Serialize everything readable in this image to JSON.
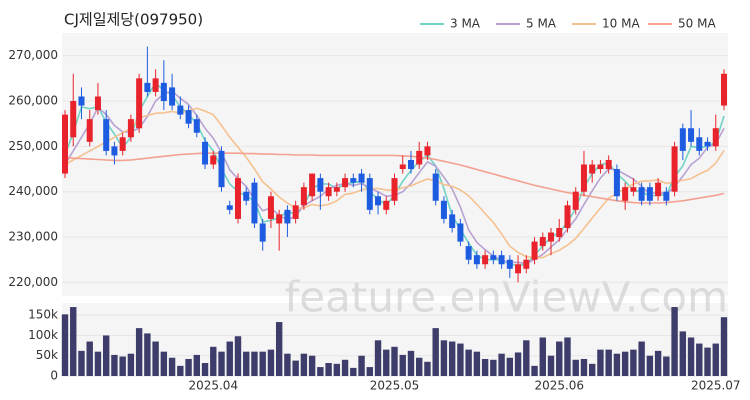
{
  "watermark": "feature.enViewV.com",
  "chart_data": [
    {
      "type": "candlestick",
      "title": "CJ제일제당(097950)",
      "legend": "top-right",
      "up_color": "#e8232b",
      "down_color": "#1d5ce0",
      "ylim": [
        217000,
        275000
      ],
      "yticks": [
        {
          "value": 220000,
          "label": "220,000"
        },
        {
          "value": 230000,
          "label": "230,000"
        },
        {
          "value": 240000,
          "label": "240,000"
        },
        {
          "value": 250000,
          "label": "250,000"
        },
        {
          "value": 260000,
          "label": "260,000"
        },
        {
          "value": 270000,
          "label": "270,000"
        }
      ],
      "open": [
        244000,
        252000,
        261000,
        251000,
        258000,
        256000,
        250000,
        249000,
        252000,
        254000,
        264000,
        262000,
        264000,
        263000,
        259000,
        258000,
        256000,
        251000,
        246000,
        249000,
        237000,
        234000,
        240000,
        242000,
        233000,
        234000,
        233000,
        236000,
        234000,
        237000,
        239000,
        243000,
        239000,
        240000,
        241000,
        243000,
        244000,
        243000,
        239000,
        236000,
        238000,
        245000,
        247000,
        246000,
        248000,
        244000,
        238000,
        235000,
        233000,
        228000,
        226000,
        224000,
        226000,
        226000,
        225000,
        222000,
        223000,
        225000,
        228000,
        229000,
        230000,
        232000,
        236000,
        240000,
        244000,
        245000,
        245000,
        245000,
        238000,
        240000,
        241000,
        241000,
        239000,
        240000,
        240000,
        254000,
        254000,
        252000,
        251000,
        250000,
        259000
      ],
      "high": [
        258000,
        266000,
        263000,
        258000,
        264000,
        258000,
        251000,
        253000,
        257000,
        266000,
        272000,
        267000,
        269000,
        266000,
        261000,
        259000,
        257000,
        252000,
        249000,
        250000,
        238000,
        244000,
        241000,
        243000,
        234000,
        240000,
        236000,
        237000,
        238000,
        242000,
        244000,
        244000,
        242000,
        242000,
        244000,
        244000,
        245000,
        244000,
        240000,
        239000,
        244000,
        248000,
        249000,
        251000,
        251000,
        245000,
        239000,
        236000,
        234000,
        229000,
        227000,
        227000,
        227000,
        227000,
        226000,
        226000,
        226000,
        230000,
        231000,
        232000,
        234000,
        238000,
        241000,
        249000,
        247000,
        247000,
        248000,
        246000,
        242000,
        243000,
        242000,
        242000,
        243000,
        241000,
        251000,
        255000,
        258000,
        254000,
        252000,
        257000,
        267000
      ],
      "low": [
        243000,
        250000,
        256000,
        250000,
        257000,
        248000,
        246000,
        248000,
        251000,
        253000,
        261000,
        261000,
        258000,
        258000,
        256000,
        254000,
        252000,
        245000,
        245000,
        240000,
        235000,
        233000,
        237000,
        232000,
        227000,
        232000,
        227000,
        230000,
        233000,
        236000,
        238000,
        236000,
        238000,
        239000,
        240000,
        241000,
        240000,
        235000,
        235000,
        235000,
        237000,
        244000,
        244000,
        245000,
        247000,
        237000,
        233000,
        231000,
        228000,
        224000,
        223000,
        223000,
        224000,
        223000,
        221000,
        220000,
        222000,
        224000,
        227000,
        226000,
        229000,
        231000,
        235000,
        239000,
        242000,
        244000,
        244000,
        238000,
        236000,
        239000,
        237000,
        237000,
        238000,
        237000,
        239000,
        247000,
        250000,
        248000,
        249000,
        249000,
        258000
      ],
      "close": [
        257000,
        260000,
        259000,
        256000,
        261000,
        249000,
        248000,
        252000,
        256000,
        265000,
        262000,
        265000,
        260000,
        259000,
        257000,
        255000,
        253000,
        246000,
        248000,
        241000,
        236000,
        243000,
        238000,
        233000,
        229000,
        239000,
        235000,
        233000,
        237000,
        241000,
        244000,
        240000,
        241000,
        241000,
        243000,
        242000,
        242000,
        236000,
        237000,
        238000,
        243000,
        246000,
        245000,
        249000,
        250000,
        238000,
        234000,
        232000,
        229000,
        225000,
        224000,
        226000,
        225000,
        224000,
        223000,
        224000,
        225000,
        229000,
        230000,
        231000,
        232000,
        237000,
        240000,
        246000,
        246000,
        246000,
        247000,
        239000,
        241000,
        241000,
        238000,
        238000,
        242000,
        238000,
        250000,
        249000,
        251000,
        249000,
        250000,
        254000,
        266000
      ],
      "series": [
        {
          "name": "3 MA",
          "color": "#6fd3c6",
          "values": [
            248000,
            253000,
            258700,
            258300,
            258700,
            255300,
            252700,
            249700,
            252000,
            257700,
            261000,
            264000,
            262300,
            261300,
            258700,
            257000,
            255000,
            251300,
            249000,
            245000,
            241700,
            240000,
            239000,
            238000,
            233300,
            233700,
            234300,
            235700,
            235000,
            237000,
            240700,
            241700,
            241700,
            240700,
            241700,
            242000,
            242300,
            240000,
            238300,
            237000,
            239300,
            242300,
            244700,
            246700,
            248000,
            245700,
            240700,
            234700,
            231700,
            228700,
            226000,
            225000,
            225000,
            225000,
            224000,
            223700,
            224000,
            226000,
            228000,
            230000,
            231000,
            233300,
            236300,
            241000,
            244000,
            246000,
            246300,
            244000,
            242300,
            240300,
            240000,
            239000,
            239300,
            239300,
            243300,
            245700,
            250000,
            249700,
            250000,
            251000,
            256700
          ]
        },
        {
          "name": "5 MA",
          "color": "#b7a1d3",
          "values": [
            246000,
            249000,
            252000,
            255000,
            258600,
            257000,
            254600,
            253200,
            253200,
            254000,
            256600,
            260000,
            261600,
            262200,
            260600,
            259200,
            256800,
            254000,
            251800,
            248600,
            244800,
            242800,
            241200,
            238200,
            235800,
            236400,
            234800,
            233800,
            234600,
            237000,
            238000,
            239000,
            240600,
            241400,
            241800,
            241400,
            241800,
            240800,
            240000,
            239000,
            239200,
            240000,
            241800,
            244200,
            246600,
            245600,
            243200,
            240600,
            236600,
            231600,
            228800,
            227200,
            225800,
            224800,
            224400,
            224400,
            224200,
            225000,
            226200,
            227800,
            229400,
            231800,
            234000,
            237200,
            240200,
            243000,
            245000,
            244800,
            243800,
            242800,
            241200,
            239400,
            240000,
            239400,
            241200,
            243400,
            246000,
            247400,
            249800,
            250600,
            254000
          ]
        },
        {
          "name": "10 MA",
          "color": "#f5c18f",
          "values": [
            246000,
            247000,
            248000,
            249000,
            250000,
            251000,
            252000,
            253000,
            254000,
            256300,
            256800,
            257300,
            257400,
            257700,
            257300,
            257900,
            258400,
            257800,
            257000,
            254600,
            252000,
            249800,
            247600,
            245000,
            242200,
            240600,
            238800,
            237500,
            236400,
            236400,
            237200,
            236900,
            237200,
            238000,
            239400,
            239700,
            240400,
            240700,
            240700,
            240400,
            240300,
            240900,
            241300,
            242100,
            242800,
            242400,
            241600,
            241200,
            240400,
            239100,
            237200,
            235200,
            233200,
            230700,
            228000,
            226600,
            225700,
            225400,
            225500,
            226300,
            227100,
            228200,
            229700,
            231900,
            234200,
            236400,
            238600,
            239600,
            240700,
            241700,
            242300,
            242400,
            242600,
            241800,
            242200,
            242500,
            242900,
            243900,
            244700,
            246300,
            249100
          ]
        },
        {
          "name": "50 MA",
          "color": "#f3a190",
          "values": [
            247500,
            247400,
            247300,
            247200,
            247100,
            247000,
            246900,
            246900,
            247000,
            247200,
            247400,
            247600,
            247800,
            248000,
            248200,
            248300,
            248400,
            248500,
            248500,
            248500,
            248500,
            248500,
            248400,
            248400,
            248300,
            248300,
            248200,
            248200,
            248100,
            248100,
            248100,
            248000,
            248000,
            248000,
            248000,
            248000,
            248000,
            248000,
            248000,
            248000,
            248000,
            247900,
            247800,
            247600,
            247400,
            247100,
            246700,
            246300,
            245900,
            245400,
            244900,
            244400,
            243900,
            243400,
            242900,
            242400,
            241900,
            241400,
            241000,
            240600,
            240200,
            239800,
            239500,
            239200,
            238900,
            238600,
            238300,
            238000,
            237800,
            237600,
            237500,
            237500,
            237500,
            237600,
            237800,
            238000,
            238300,
            238600,
            238900,
            239200,
            239600
          ]
        }
      ]
    },
    {
      "type": "bar",
      "color": "#3d3c6a",
      "ylim": [
        0,
        180000
      ],
      "yticks": [
        0,
        {
          "value": 50000,
          "label": "50k"
        },
        {
          "value": 100000,
          "label": "100k"
        },
        {
          "value": 150000,
          "label": "150k"
        }
      ],
      "categories": [
        null,
        null,
        null,
        null,
        null,
        null,
        null,
        null,
        null,
        null,
        null,
        null,
        null,
        null,
        null,
        null,
        null,
        null,
        "2025.04",
        null,
        null,
        null,
        null,
        null,
        null,
        null,
        null,
        null,
        null,
        null,
        null,
        null,
        null,
        null,
        null,
        null,
        null,
        null,
        null,
        null,
        "2025.05",
        null,
        null,
        null,
        null,
        null,
        null,
        null,
        null,
        null,
        null,
        null,
        null,
        null,
        null,
        null,
        null,
        null,
        null,
        null,
        "2025.06",
        null,
        null,
        null,
        null,
        null,
        null,
        null,
        null,
        null,
        null,
        null,
        null,
        null,
        null,
        null,
        null,
        null,
        null,
        "2025.07",
        null
      ],
      "values": [
        152000,
        170000,
        62000,
        85000,
        60000,
        100000,
        52000,
        48000,
        55000,
        118000,
        105000,
        85000,
        60000,
        45000,
        25000,
        42000,
        52000,
        32000,
        72000,
        60000,
        85000,
        98000,
        60000,
        60000,
        60000,
        65000,
        133000,
        55000,
        38000,
        55000,
        50000,
        22000,
        32000,
        30000,
        40000,
        20000,
        50000,
        22000,
        88000,
        65000,
        72000,
        52000,
        62000,
        45000,
        35000,
        118000,
        88000,
        85000,
        80000,
        65000,
        60000,
        42000,
        40000,
        55000,
        45000,
        58000,
        88000,
        25000,
        95000,
        50000,
        85000,
        95000,
        40000,
        42000,
        30000,
        65000,
        65000,
        55000,
        60000,
        65000,
        85000,
        50000,
        62000,
        48000,
        170000,
        110000,
        95000,
        80000,
        70000,
        80000,
        145000
      ]
    }
  ]
}
